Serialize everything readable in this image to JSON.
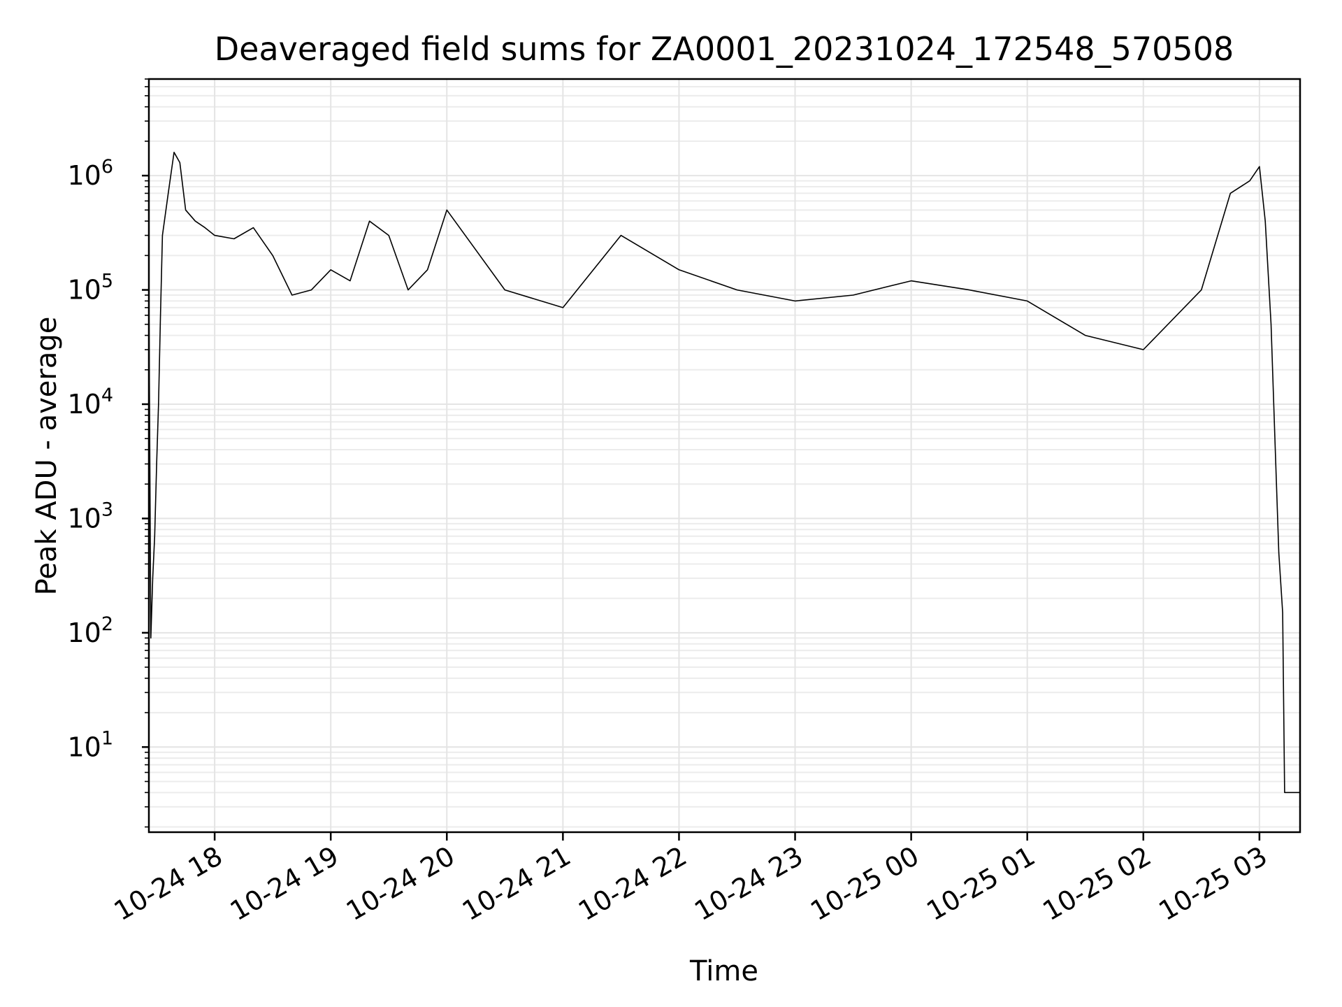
{
  "chart_data": {
    "type": "line",
    "title": "Deaveraged field sums for ZA0001_20231024_172548_570508",
    "xlabel": "Time",
    "ylabel": "Peak ADU - average",
    "yscale": "log",
    "ylim": [
      1.8,
      7000000
    ],
    "xlim": [
      "2023-10-24 17:26",
      "2023-10-25 03:21"
    ],
    "grid": true,
    "line_color": "#000000",
    "x_ticks": [
      "2023-10-24 18:00",
      "2023-10-24 19:00",
      "2023-10-24 20:00",
      "2023-10-24 21:00",
      "2023-10-24 22:00",
      "2023-10-24 23:00",
      "2023-10-25 00:00",
      "2023-10-25 01:00",
      "2023-10-25 02:00",
      "2023-10-25 03:00"
    ],
    "x_tick_labels": [
      "10-24 18",
      "10-24 19",
      "10-24 20",
      "10-24 21",
      "10-24 22",
      "10-24 23",
      "10-25 00",
      "10-25 01",
      "10-25 02",
      "10-25 03"
    ],
    "y_ticks": [
      10,
      100,
      1000,
      10000,
      100000,
      1000000
    ],
    "y_tick_labels": [
      {
        "base": "10",
        "exp": "1"
      },
      {
        "base": "10",
        "exp": "2"
      },
      {
        "base": "10",
        "exp": "3"
      },
      {
        "base": "10",
        "exp": "4"
      },
      {
        "base": "10",
        "exp": "5"
      },
      {
        "base": "10",
        "exp": "6"
      }
    ],
    "series": [
      {
        "points": [
          [
            "2023-10-24 17:26",
            2
          ],
          [
            "2023-10-24 17:26",
            100000
          ],
          [
            "2023-10-24 17:27",
            90
          ],
          [
            "2023-10-24 17:28",
            300
          ],
          [
            "2023-10-24 17:29",
            700
          ],
          [
            "2023-10-24 17:30",
            3000
          ],
          [
            "2023-10-24 17:31",
            10000
          ],
          [
            "2023-10-24 17:32",
            60000
          ],
          [
            "2023-10-24 17:33",
            300000
          ],
          [
            "2023-10-24 17:36",
            700000
          ],
          [
            "2023-10-24 17:39",
            1600000
          ],
          [
            "2023-10-24 17:42",
            1300000
          ],
          [
            "2023-10-24 17:45",
            500000
          ],
          [
            "2023-10-24 17:50",
            400000
          ],
          [
            "2023-10-24 17:55",
            350000
          ],
          [
            "2023-10-24 18:00",
            300000
          ],
          [
            "2023-10-24 18:10",
            280000
          ],
          [
            "2023-10-24 18:20",
            350000
          ],
          [
            "2023-10-24 18:30",
            200000
          ],
          [
            "2023-10-24 18:40",
            90000
          ],
          [
            "2023-10-24 18:50",
            100000
          ],
          [
            "2023-10-24 19:00",
            150000
          ],
          [
            "2023-10-24 19:10",
            120000
          ],
          [
            "2023-10-24 19:20",
            400000
          ],
          [
            "2023-10-24 19:30",
            300000
          ],
          [
            "2023-10-24 19:40",
            100000
          ],
          [
            "2023-10-24 19:50",
            150000
          ],
          [
            "2023-10-24 20:00",
            500000
          ],
          [
            "2023-10-24 20:30",
            100000
          ],
          [
            "2023-10-24 21:00",
            70000
          ],
          [
            "2023-10-24 21:30",
            300000
          ],
          [
            "2023-10-24 22:00",
            150000
          ],
          [
            "2023-10-24 22:30",
            100000
          ],
          [
            "2023-10-24 23:00",
            80000
          ],
          [
            "2023-10-24 23:30",
            90000
          ],
          [
            "2023-10-25 00:00",
            120000
          ],
          [
            "2023-10-25 00:30",
            100000
          ],
          [
            "2023-10-25 01:00",
            80000
          ],
          [
            "2023-10-25 01:30",
            40000
          ],
          [
            "2023-10-25 02:00",
            30000
          ],
          [
            "2023-10-25 02:30",
            100000
          ],
          [
            "2023-10-25 02:45",
            700000
          ],
          [
            "2023-10-25 02:55",
            900000
          ],
          [
            "2023-10-25 03:00",
            1200000
          ],
          [
            "2023-10-25 03:03",
            400000
          ],
          [
            "2023-10-25 03:06",
            50000
          ],
          [
            "2023-10-25 03:08",
            5000
          ],
          [
            "2023-10-25 03:10",
            500
          ],
          [
            "2023-10-25 03:12",
            150
          ],
          [
            "2023-10-25 03:13",
            4
          ],
          [
            "2023-10-25 03:21",
            4
          ]
        ]
      }
    ]
  }
}
